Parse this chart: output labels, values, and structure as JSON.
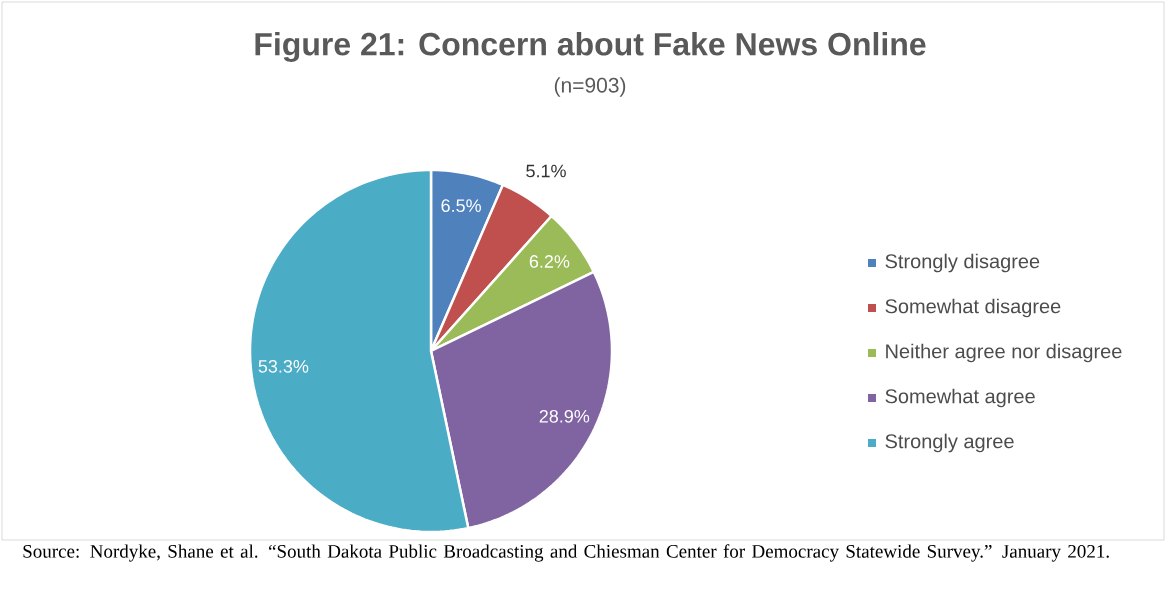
{
  "chart_data": {
    "type": "pie",
    "title": "Figure 21: Concern about Fake News Online",
    "subtitle": "(n=903)",
    "categories": [
      "Strongly disagree",
      "Somewhat disagree",
      "Neither agree nor disagree",
      "Somewhat agree",
      "Strongly agree"
    ],
    "values": [
      6.5,
      5.1,
      6.2,
      28.9,
      53.3
    ],
    "colors": [
      "#4f81bd",
      "#c0504d",
      "#9bbb59",
      "#8064a2",
      "#4bacc6"
    ],
    "value_labels": [
      "6.5%",
      "5.1%",
      "6.2%",
      "28.9%",
      "53.3%"
    ],
    "legend": "right",
    "annotations": [
      "Source: Nordyke, Shane et al. “South Dakota Public Broadcasting and Chiesman Center for Democracy Statewide Survey.” January 2021."
    ]
  }
}
